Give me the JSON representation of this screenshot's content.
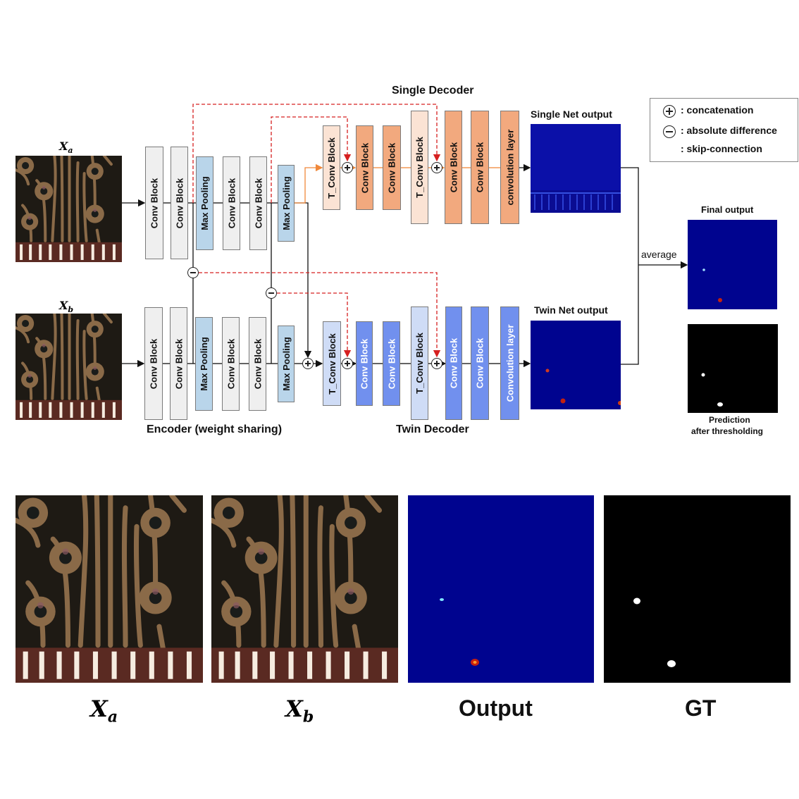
{
  "diagram": {
    "single_decoder_title": "Single Decoder",
    "twin_decoder_title": "Twin Decoder",
    "encoder_title": "Encoder  (weight sharing)",
    "input_a": {
      "symbol": "X",
      "sub": "a"
    },
    "input_b": {
      "symbol": "X",
      "sub": "b"
    },
    "encoder_blocks": [
      "Conv Block",
      "Conv Block",
      "Max Pooling",
      "Conv Block",
      "Conv Block",
      "Max Pooling"
    ],
    "single_decoder_blocks": [
      "T_Conv Block",
      "Conv Block",
      "Conv Block",
      "T_Conv Block",
      "Conv Block",
      "Conv Block",
      "convolution layer"
    ],
    "twin_decoder_blocks": [
      "T_Conv Block",
      "Conv Block",
      "Conv Block",
      "T_Conv Block",
      "Conv Block",
      "Conv Block",
      "Convolution layer"
    ],
    "single_net_output_label": "Single Net output",
    "twin_net_output_label": "Twin Net output",
    "average_label": "average",
    "final_output_label": "Final output",
    "prediction_label_1": "Prediction",
    "prediction_label_2": "after thresholding",
    "legend": {
      "concatenation": ": concatenation",
      "absolute_difference": ": absolute difference",
      "skip_connection": ": skip-connection"
    },
    "colors": {
      "encoder": "#efefef",
      "pooling": "#b9d5ea",
      "single_tconv": "#fbe3d4",
      "single_conv": "#f2a97e",
      "twin_tconv": "#cfdcf6",
      "twin_conv": "#7190ee",
      "skip": "#d62020",
      "single_flow": "#f0883a",
      "heatmap_bg": "#00048f",
      "pcb_bg": "#1e1a14",
      "pcb_trace": "#8a6a48"
    }
  },
  "examples": {
    "labels": [
      {
        "symbol": "X",
        "sub": "a"
      },
      {
        "symbol": "X",
        "sub": "b"
      },
      {
        "text": "Output"
      },
      {
        "text": "GT"
      }
    ]
  }
}
